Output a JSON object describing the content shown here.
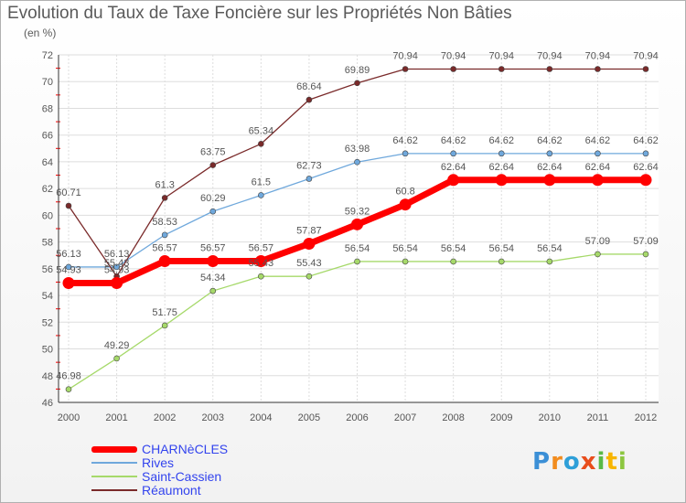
{
  "header": {
    "title": "Evolution du Taux de Taxe Foncière sur les Propriétés Non Bâties",
    "unit": "(en %)"
  },
  "logo": {
    "text": "Proxiti"
  },
  "chart_data": {
    "type": "line",
    "title": "Evolution du Taux de Taxe Foncière sur les Propriétés Non Bâties",
    "ylabel": "(en %)",
    "xlabel": "",
    "x": [
      "2000",
      "2001",
      "2002",
      "2003",
      "2004",
      "2005",
      "2006",
      "2007",
      "2008",
      "2009",
      "2010",
      "2011",
      "2012"
    ],
    "ylim": [
      46,
      72
    ],
    "yticks": [
      46,
      48,
      50,
      52,
      54,
      56,
      58,
      60,
      62,
      64,
      66,
      68,
      70,
      72
    ],
    "grid": true,
    "legend_position": "bottom-left",
    "series": [
      {
        "name": "CHARNèCLES",
        "color": "#ff0000",
        "values": [
          54.93,
          54.93,
          56.57,
          56.57,
          56.57,
          57.87,
          59.32,
          60.8,
          62.64,
          62.64,
          62.64,
          62.64,
          62.64
        ],
        "labels": [
          "54.93",
          "54.93",
          "56.57",
          "56.57",
          "56.57",
          "57.87",
          "59.32",
          "60.8",
          "62.64",
          "62.64",
          "62.64",
          "62.64",
          "62.64"
        ]
      },
      {
        "name": "Rives",
        "color": "#6fa8dc",
        "values": [
          56.13,
          56.13,
          58.53,
          60.29,
          61.5,
          62.73,
          63.98,
          64.62,
          64.62,
          64.62,
          64.62,
          64.62,
          64.62
        ],
        "labels": [
          "56.13",
          "56.13",
          "58.53",
          "60.29",
          "61.5",
          "62.73",
          "63.98",
          "64.62",
          "64.62",
          "64.62",
          "64.62",
          "64.62",
          "64.62"
        ]
      },
      {
        "name": "Saint-Cassien",
        "color": "#a6d96a",
        "values": [
          46.98,
          49.29,
          51.75,
          54.34,
          55.43,
          55.43,
          56.54,
          56.54,
          56.54,
          56.54,
          56.54,
          57.09,
          57.09
        ],
        "labels": [
          "46.98",
          "49.29",
          "51.75",
          "54.34",
          "55.43",
          "55.43",
          "56.54",
          "56.54",
          "56.54",
          "56.54",
          "56.54",
          "57.09",
          "57.09"
        ]
      },
      {
        "name": "Réaumont",
        "color": "#7a2a2a",
        "values": [
          60.71,
          55.43,
          61.3,
          63.75,
          65.34,
          68.64,
          69.89,
          70.94,
          70.94,
          70.94,
          70.94,
          70.94,
          70.94
        ],
        "labels": [
          "60.71",
          "55.43",
          "61.3",
          "63.75",
          "65.34",
          "68.64",
          "69.89",
          "70.94",
          "70.94",
          "70.94",
          "70.94",
          "70.94",
          "70.94"
        ]
      }
    ]
  }
}
